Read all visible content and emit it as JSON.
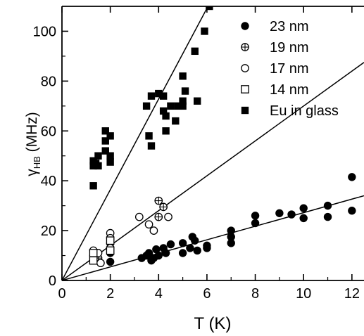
{
  "chart_data": {
    "type": "scatter",
    "xlabel": "T (K)",
    "ylabel_main": "γ",
    "ylabel_sub": "HB",
    "ylabel_unit": " (MHz)",
    "xlim": [
      0,
      12.5
    ],
    "ylim": [
      0,
      110
    ],
    "x_ticks": [
      0,
      2,
      4,
      6,
      8,
      10,
      12
    ],
    "y_ticks": [
      0,
      20,
      40,
      60,
      80,
      100
    ],
    "grid": false,
    "legend_position": "top-right",
    "series": [
      {
        "name": "23 nm",
        "marker": "filled-circle",
        "points": [
          [
            1.3,
            9
          ],
          [
            1.5,
            8
          ],
          [
            2,
            7.5
          ],
          [
            2,
            11
          ],
          [
            3.3,
            9
          ],
          [
            3.5,
            10
          ],
          [
            3.6,
            11
          ],
          [
            3.7,
            8
          ],
          [
            3.8,
            9
          ],
          [
            3.9,
            12.5
          ],
          [
            4,
            10
          ],
          [
            4.2,
            13
          ],
          [
            4.3,
            11
          ],
          [
            4.5,
            14.5
          ],
          [
            5,
            15
          ],
          [
            5,
            11
          ],
          [
            5.3,
            13
          ],
          [
            5.4,
            17.5
          ],
          [
            5.5,
            16
          ],
          [
            5.6,
            12
          ],
          [
            6,
            13
          ],
          [
            6,
            14
          ],
          [
            7,
            20
          ],
          [
            7,
            17.5
          ],
          [
            7,
            15
          ],
          [
            8,
            26
          ],
          [
            8,
            23
          ],
          [
            9,
            27
          ],
          [
            9.5,
            26.5
          ],
          [
            10,
            29
          ],
          [
            10,
            25
          ],
          [
            11,
            30
          ],
          [
            11,
            25.5
          ],
          [
            12,
            41.5
          ],
          [
            12,
            28
          ]
        ]
      },
      {
        "name": "19 nm",
        "marker": "crossed-circle",
        "points": [
          [
            1.3,
            10
          ],
          [
            1.5,
            9
          ],
          [
            2,
            15
          ],
          [
            4,
            32
          ],
          [
            4.2,
            29.5
          ],
          [
            4,
            25.5
          ]
        ]
      },
      {
        "name": "17 nm",
        "marker": "open-circle",
        "points": [
          [
            1.3,
            12
          ],
          [
            1.5,
            11
          ],
          [
            1.6,
            7
          ],
          [
            2,
            19
          ],
          [
            2,
            17
          ],
          [
            2,
            13
          ],
          [
            3.2,
            25.5
          ],
          [
            3.6,
            22.5
          ],
          [
            3.8,
            20
          ],
          [
            4.4,
            25.5
          ]
        ]
      },
      {
        "name": "14 nm",
        "marker": "open-square",
        "points": [
          [
            1.3,
            11
          ],
          [
            1.3,
            8
          ],
          [
            2,
            16
          ],
          [
            2,
            12
          ]
        ]
      },
      {
        "name": "Eu in glass",
        "marker": "filled-square",
        "points": [
          [
            1.3,
            38
          ],
          [
            1.3,
            46
          ],
          [
            1.3,
            48
          ],
          [
            1.4,
            47
          ],
          [
            1.5,
            50
          ],
          [
            1.5,
            46
          ],
          [
            1.8,
            60
          ],
          [
            1.8,
            56
          ],
          [
            1.8,
            52
          ],
          [
            2,
            58
          ],
          [
            2,
            50
          ],
          [
            2,
            47.5
          ],
          [
            3.5,
            70
          ],
          [
            3.6,
            58
          ],
          [
            3.7,
            54
          ],
          [
            3.7,
            74
          ],
          [
            4,
            75
          ],
          [
            4.2,
            74
          ],
          [
            4.2,
            68
          ],
          [
            4.3,
            60
          ],
          [
            4.3,
            66
          ],
          [
            4.5,
            70
          ],
          [
            4.7,
            64
          ],
          [
            4.8,
            70
          ],
          [
            5,
            82
          ],
          [
            5,
            72
          ],
          [
            5,
            70
          ],
          [
            5.1,
            76
          ],
          [
            5.5,
            92
          ],
          [
            5.6,
            72
          ],
          [
            5.9,
            100
          ],
          [
            6.1,
            110
          ]
        ]
      }
    ],
    "fit_lines": [
      {
        "slope": 18.2
      },
      {
        "slope": 7.0
      },
      {
        "slope": 2.72
      }
    ]
  }
}
